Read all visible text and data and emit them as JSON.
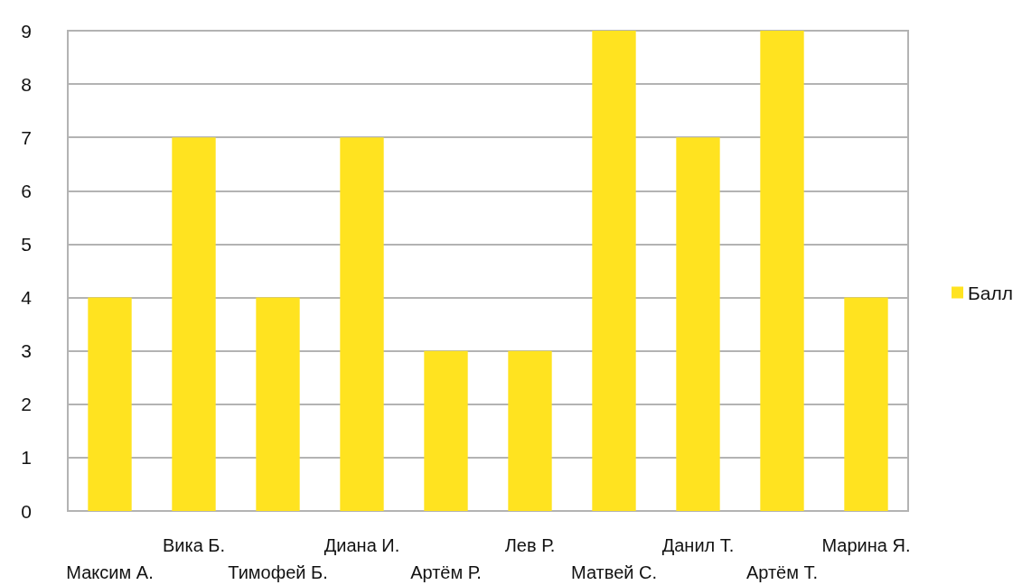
{
  "chart_data": {
    "type": "bar",
    "categories": [
      "Максим А.",
      "Вика Б.",
      "Тимофей Б.",
      "Диана И.",
      "Артём Р.",
      "Лев Р.",
      "Матвей С.",
      "Данил Т.",
      "Артём Т.",
      "Марина Я."
    ],
    "series": [
      {
        "name": "Балл",
        "color": "#ffe320",
        "values": [
          4,
          7,
          4,
          7,
          3,
          3,
          9,
          7,
          9,
          4
        ]
      }
    ],
    "ylim": [
      0,
      9
    ],
    "yticks": [
      0,
      1,
      2,
      3,
      4,
      5,
      6,
      7,
      8,
      9
    ],
    "grid": "y",
    "legend": "right"
  }
}
